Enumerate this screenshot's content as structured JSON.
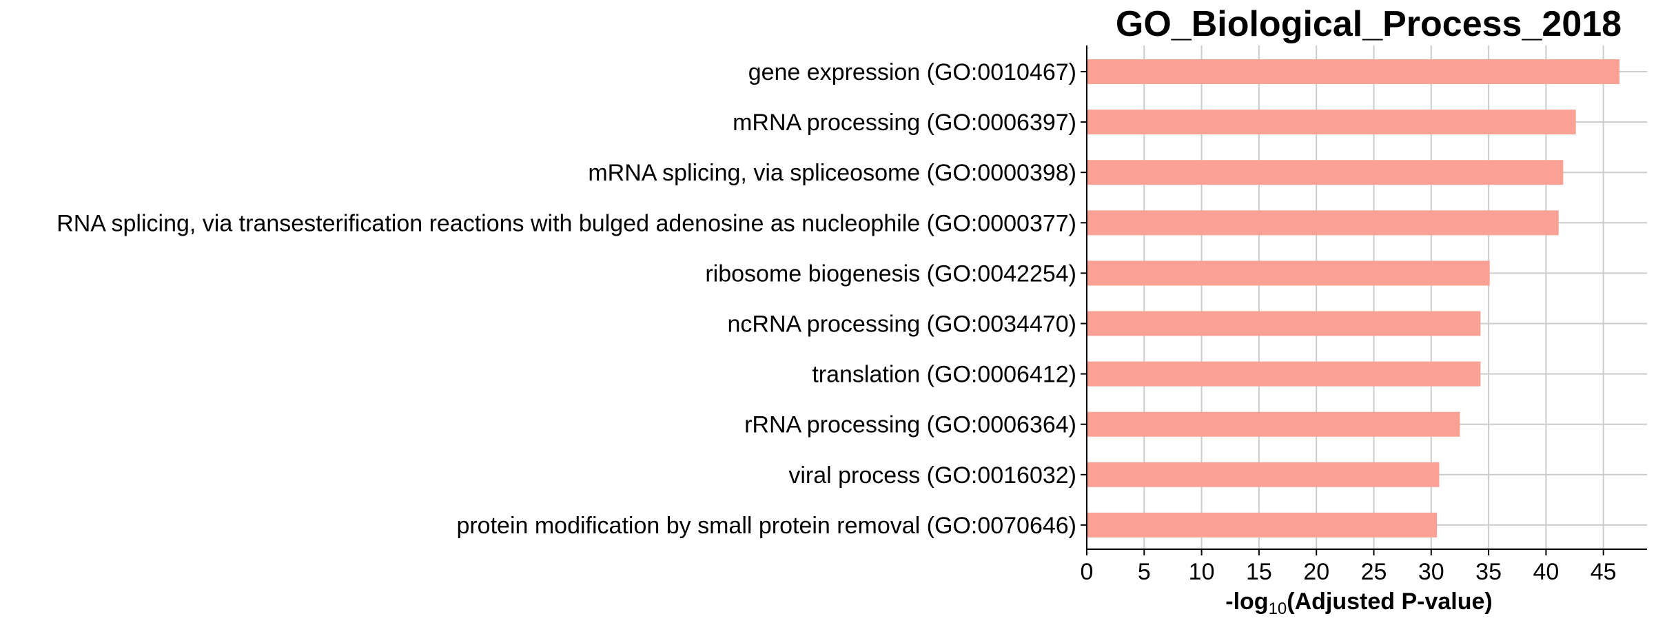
{
  "chart_data": {
    "type": "bar",
    "orientation": "horizontal",
    "title": "GO_Biological_Process_2018",
    "xlabel": {
      "prefix": "-log",
      "subscript": "10",
      "suffix": "(Adjusted P-value)"
    },
    "ylabel": "",
    "categories": [
      "gene expression (GO:0010467)",
      "mRNA processing (GO:0006397)",
      "mRNA splicing, via spliceosome (GO:0000398)",
      "RNA splicing, via transesterification reactions with bulged adenosine as nucleophile (GO:0000377)",
      "ribosome biogenesis (GO:0042254)",
      "ncRNA processing (GO:0034470)",
      "translation (GO:0006412)",
      "rRNA processing (GO:0006364)",
      "viral process (GO:0016032)",
      "protein modification by small protein removal (GO:0070646)"
    ],
    "values": [
      46.4,
      42.6,
      41.5,
      41.1,
      35.1,
      34.3,
      34.3,
      32.5,
      30.7,
      30.5
    ],
    "xlim": [
      0,
      48.8
    ],
    "xticks": [
      "0",
      "5",
      "10",
      "15",
      "20",
      "25",
      "30",
      "35",
      "40",
      "45"
    ],
    "grid": true,
    "bar_color": "#f9a195",
    "grid_color": "#cccccc",
    "axis_color": "#000000"
  }
}
